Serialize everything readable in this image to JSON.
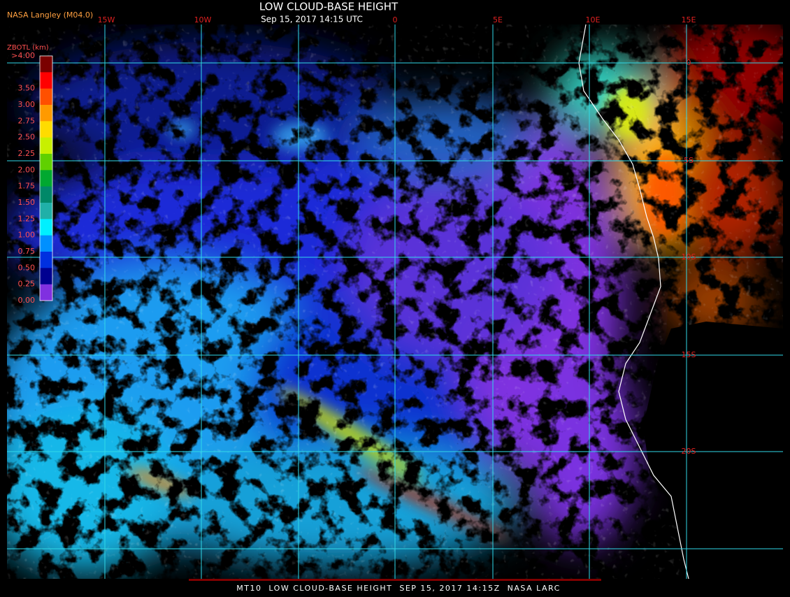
{
  "header": {
    "source": "NASA Langley (M04.0)",
    "title": "LOW CLOUD-BASE HEIGHT",
    "timestamp": "Sep 15, 2017 14:15 UTC"
  },
  "legend": {
    "title": "ZBOTL (km)",
    "entries": [
      {
        "label": ">4.00",
        "color": "#7a0000"
      },
      {
        "label": "3.50",
        "color": "#ff0000"
      },
      {
        "label": "3.00",
        "color": "#ff5000"
      },
      {
        "label": "2.75",
        "color": "#ff9a00"
      },
      {
        "label": "2.50",
        "color": "#ffdc00"
      },
      {
        "label": "2.25",
        "color": "#c8f000"
      },
      {
        "label": "2.00",
        "color": "#60d000"
      },
      {
        "label": "1.75",
        "color": "#00a830"
      },
      {
        "label": "1.50",
        "color": "#008868"
      },
      {
        "label": "1.25",
        "color": "#20b0a8"
      },
      {
        "label": "1.00",
        "color": "#00f0ff"
      },
      {
        "label": "0.75",
        "color": "#0090ff"
      },
      {
        "label": "0.50",
        "color": "#0030e0"
      },
      {
        "label": "0.25",
        "color": "#000090"
      },
      {
        "label": "0.00",
        "color": "#8030e0"
      }
    ]
  },
  "grid": {
    "longitudes": [
      "15W",
      "10W",
      "0",
      "5E",
      "10E",
      "15E"
    ],
    "latitudes": [
      "0",
      "5S",
      "10S",
      "15S",
      "20S"
    ]
  },
  "footer": "MT10  LOW CLOUD-BASE HEIGHT  SEP 15, 2017 14:15Z  NASA LARC"
}
